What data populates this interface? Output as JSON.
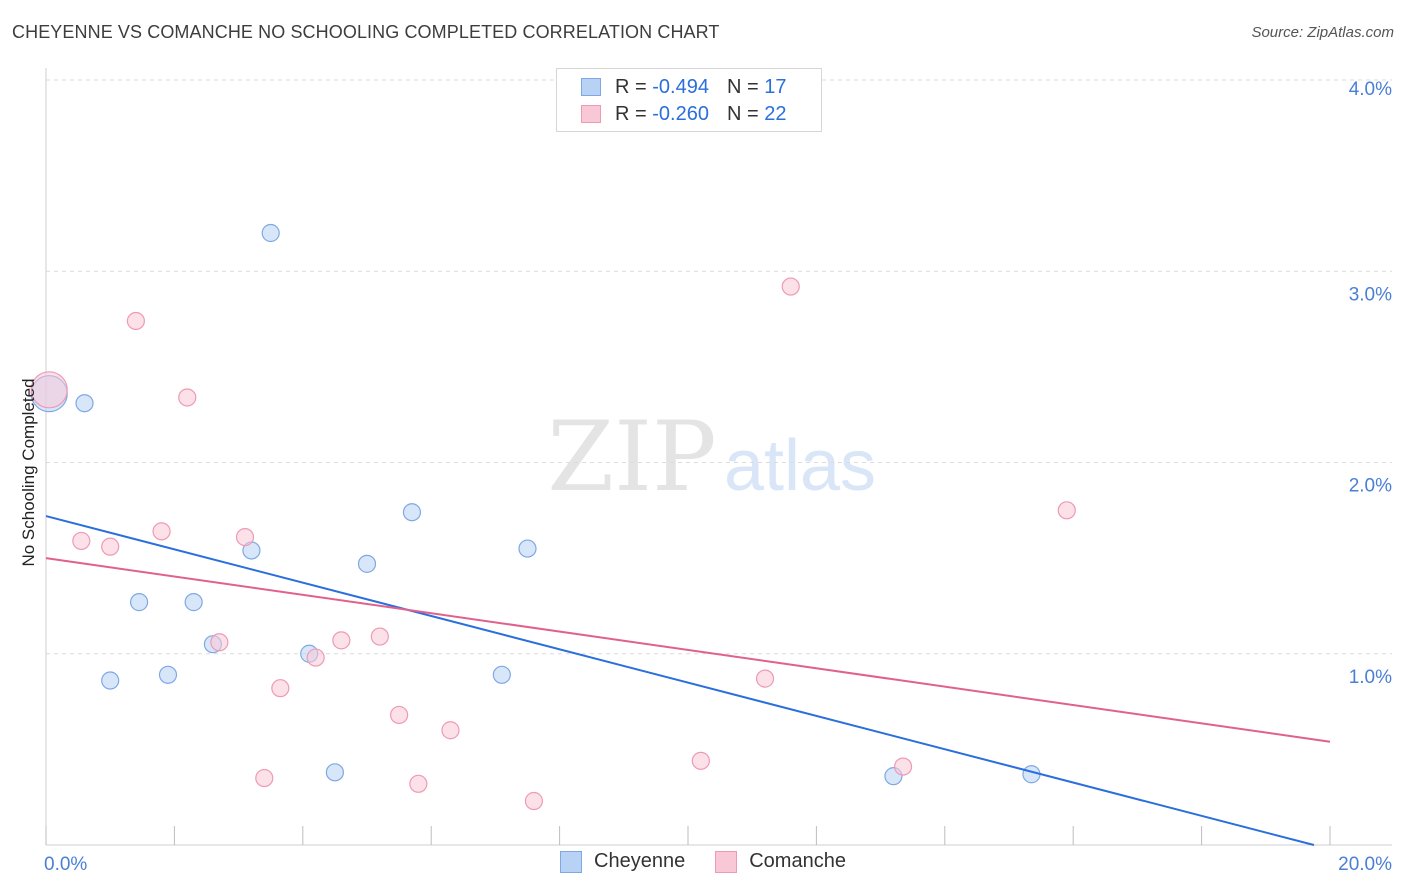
{
  "header": {
    "title": "CHEYENNE VS COMANCHE NO SCHOOLING COMPLETED CORRELATION CHART",
    "source": "Source: ZipAtlas.com"
  },
  "watermark": {
    "zip": "ZIP",
    "atlas": "atlas"
  },
  "colors": {
    "cheyenne_fill": "#b8d2f5",
    "cheyenne_stroke": "#7fa8e3",
    "cheyenne_line": "#2a6fdb",
    "comanche_fill": "#f9c8d7",
    "comanche_stroke": "#ee9ab5",
    "comanche_line": "#e0608e",
    "grid": "#dcdcdc",
    "axis_text": "#4a7fd4"
  },
  "legend": {
    "rows": [
      {
        "r_label": "R =",
        "r_value": "-0.494",
        "n_label": "N =",
        "n_value": "17"
      },
      {
        "r_label": "R =",
        "r_value": "-0.260",
        "n_label": "N =",
        "n_value": "22"
      }
    ],
    "series_names": [
      "Cheyenne",
      "Comanche"
    ]
  },
  "chart_data": {
    "type": "scatter",
    "title": "CHEYENNE VS COMANCHE NO SCHOOLING COMPLETED CORRELATION CHART",
    "xlabel": "",
    "ylabel": "No Schooling Completed",
    "xlim": [
      0,
      20
    ],
    "ylim": [
      0,
      4
    ],
    "x_tick_labels": [
      "0.0%",
      "20.0%"
    ],
    "y_ticks": [
      1,
      2,
      3,
      4
    ],
    "y_tick_labels": [
      "1.0%",
      "2.0%",
      "3.0%",
      "4.0%"
    ],
    "grid": true,
    "series": [
      {
        "name": "Cheyenne",
        "points": [
          {
            "x": 0.05,
            "y": 2.36,
            "big": true
          },
          {
            "x": 0.6,
            "y": 2.31
          },
          {
            "x": 3.5,
            "y": 3.2
          },
          {
            "x": 5.7,
            "y": 1.74
          },
          {
            "x": 7.5,
            "y": 1.55
          },
          {
            "x": 3.2,
            "y": 1.54
          },
          {
            "x": 5.0,
            "y": 1.47
          },
          {
            "x": 1.45,
            "y": 1.27
          },
          {
            "x": 2.3,
            "y": 1.27
          },
          {
            "x": 2.6,
            "y": 1.05
          },
          {
            "x": 4.1,
            "y": 1.0
          },
          {
            "x": 1.0,
            "y": 0.86
          },
          {
            "x": 1.9,
            "y": 0.89
          },
          {
            "x": 7.1,
            "y": 0.89
          },
          {
            "x": 4.5,
            "y": 0.38
          },
          {
            "x": 13.2,
            "y": 0.36
          },
          {
            "x": 15.35,
            "y": 0.37
          }
        ],
        "trend": {
          "x": [
            0,
            19.75
          ],
          "y": [
            1.72,
            0.0
          ]
        }
      },
      {
        "name": "Comanche",
        "points": [
          {
            "x": 0.05,
            "y": 2.38,
            "big": true
          },
          {
            "x": 1.4,
            "y": 2.74
          },
          {
            "x": 2.2,
            "y": 2.34
          },
          {
            "x": 11.6,
            "y": 2.92
          },
          {
            "x": 15.9,
            "y": 1.75
          },
          {
            "x": 1.8,
            "y": 1.64
          },
          {
            "x": 0.55,
            "y": 1.59
          },
          {
            "x": 1.0,
            "y": 1.56
          },
          {
            "x": 3.1,
            "y": 1.61
          },
          {
            "x": 2.7,
            "y": 1.06
          },
          {
            "x": 4.6,
            "y": 1.07
          },
          {
            "x": 5.2,
            "y": 1.09
          },
          {
            "x": 4.2,
            "y": 0.98
          },
          {
            "x": 3.65,
            "y": 0.82
          },
          {
            "x": 11.2,
            "y": 0.87
          },
          {
            "x": 5.5,
            "y": 0.68
          },
          {
            "x": 6.3,
            "y": 0.6
          },
          {
            "x": 3.4,
            "y": 0.35
          },
          {
            "x": 5.8,
            "y": 0.32
          },
          {
            "x": 10.2,
            "y": 0.44
          },
          {
            "x": 7.6,
            "y": 0.23
          },
          {
            "x": 13.35,
            "y": 0.41
          }
        ],
        "trend": {
          "x": [
            0,
            20
          ],
          "y": [
            1.5,
            0.54
          ]
        }
      }
    ]
  }
}
